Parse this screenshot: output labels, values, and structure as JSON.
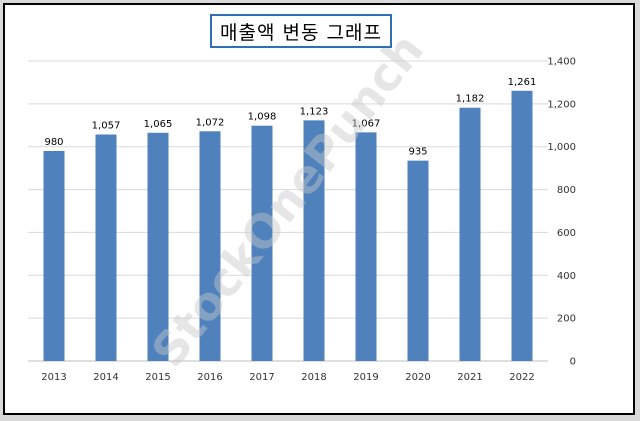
{
  "chart_data": {
    "type": "bar",
    "title": "매출액 변동 그래프",
    "categories": [
      "2013",
      "2014",
      "2015",
      "2016",
      "2017",
      "2018",
      "2019",
      "2020",
      "2021",
      "2022"
    ],
    "values": [
      980,
      1057,
      1065,
      1072,
      1098,
      1123,
      1067,
      935,
      1182,
      1261
    ],
    "data_labels": [
      "980",
      "1,057",
      "1,065",
      "1,072",
      "1,098",
      "1,123",
      "1,067",
      "935",
      "1,182",
      "1,261"
    ],
    "ylim": [
      0,
      1400
    ],
    "yticks": [
      0,
      200,
      400,
      600,
      800,
      1000,
      1200,
      1400
    ],
    "ytick_labels": [
      "0",
      "200",
      "400",
      "600",
      "800",
      "1,000",
      "1,200",
      "1,400"
    ],
    "y_axis_side": "right",
    "grid": true,
    "legend": "none",
    "bar_color": "#4f81bd",
    "watermark": "StockOnePunch"
  }
}
